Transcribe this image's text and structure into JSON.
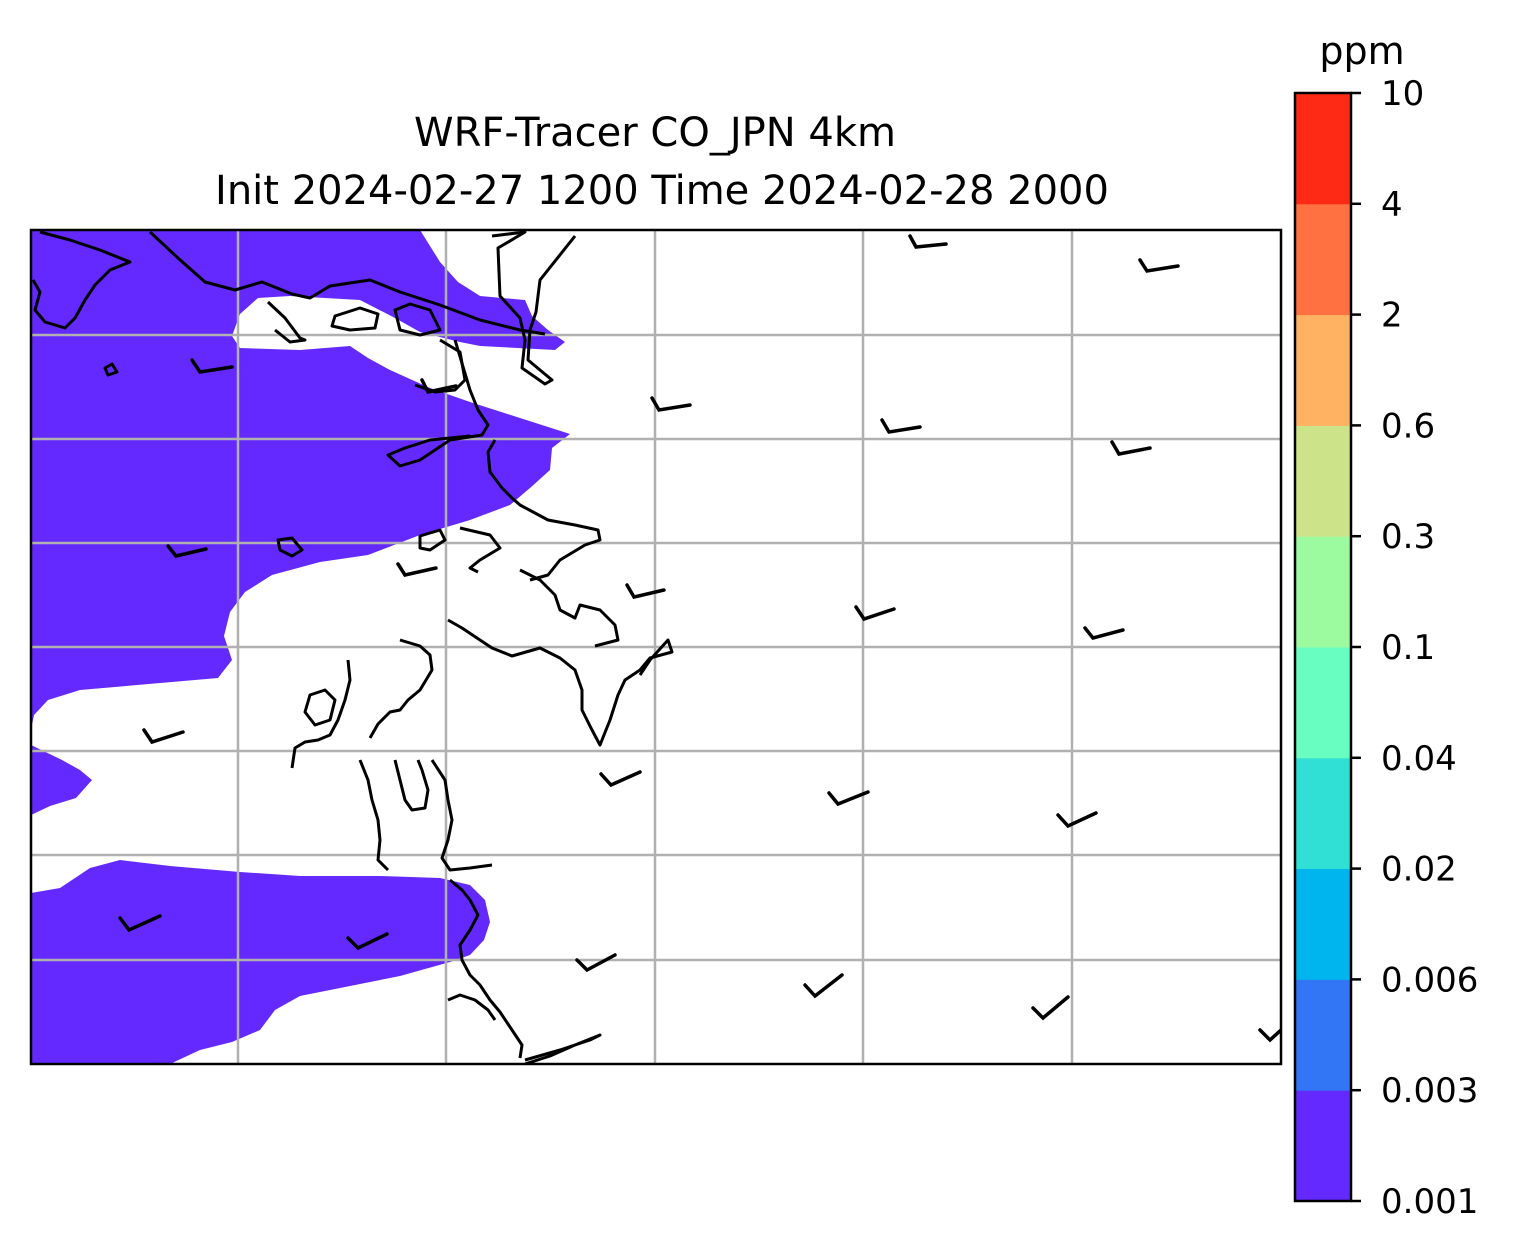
{
  "title_line1": "WRF-Tracer CO_JPN 4km",
  "title_line2": "Init 2024-02-27 1200 Time 2024-02-28 2000",
  "colorbar": {
    "unit": "ppm",
    "levels": [
      "0.001",
      "0.003",
      "0.006",
      "0.02",
      "0.04",
      "0.1",
      "0.3",
      "0.6",
      "2",
      "4",
      "10"
    ],
    "colors": [
      "#6429ff",
      "#3275f5",
      "#00b4ed",
      "#31e0d5",
      "#68fdc1",
      "#9bfb9e",
      "#cce38a",
      "#ffb262",
      "#ff7140",
      "#ff2a15"
    ]
  },
  "map": {
    "tracer_color": "#6429ff",
    "gridline_color": "#b0b0b0",
    "coastline_color": "#000000",
    "shown_band": "0.001-0.003"
  },
  "wind_barb_count": 27
}
